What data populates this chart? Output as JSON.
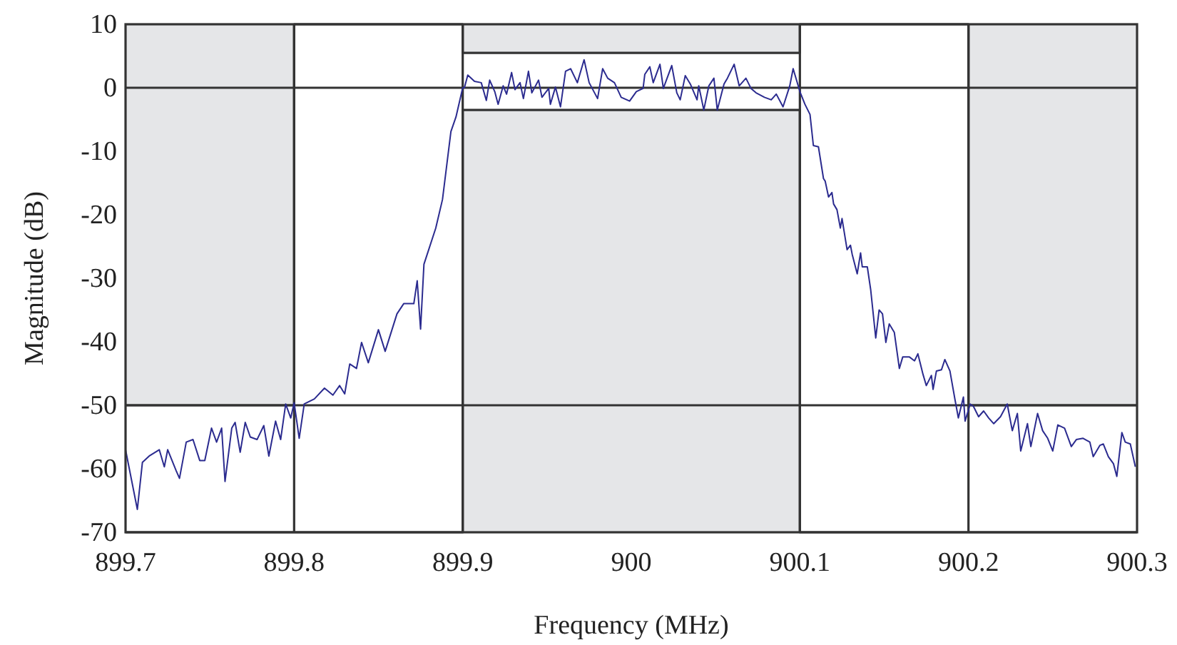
{
  "chart_data": {
    "type": "line",
    "xlabel": "Frequency (MHz)",
    "ylabel": "Magnitude (dB)",
    "xlim": [
      899.7,
      900.3
    ],
    "xticks": [
      899.7,
      899.8,
      899.9,
      900,
      900.1,
      900.2,
      900.3
    ],
    "ylim": [
      -70,
      10
    ],
    "yticks": [
      -70,
      -60,
      -50,
      -40,
      -30,
      -20,
      -10,
      0,
      10
    ],
    "marker": "none",
    "line_style": "solid",
    "ref_lines": [
      {
        "axis": "x",
        "value": 899.8
      },
      {
        "axis": "x",
        "value": 899.9
      },
      {
        "axis": "x",
        "value": 900.1
      },
      {
        "axis": "x",
        "value": 900.2
      },
      {
        "axis": "y",
        "value": 0
      },
      {
        "axis": "y",
        "value": -50
      }
    ],
    "series": [
      {
        "type": "step",
        "color": "#333333",
        "x": [
          899.7,
          899.8,
          899.9,
          900.1,
          900.2,
          900.3
        ],
        "values": [
          -50,
          10,
          5.5,
          10,
          -50,
          -50
        ]
      },
      {
        "type": "step",
        "color": "#333333",
        "x": [
          899.7,
          899.9,
          900.1,
          900.3
        ],
        "values": [
          -70,
          -3.5,
          -70,
          -70
        ]
      },
      {
        "color": "#2b2b8f",
        "x": [
          899.7,
          899.707,
          899.71,
          899.714,
          899.72,
          899.723,
          899.725,
          899.73,
          899.732,
          899.736,
          899.74,
          899.744,
          899.747,
          899.751,
          899.754,
          899.757,
          899.759,
          899.763,
          899.765,
          899.768,
          899.771,
          899.774,
          899.778,
          899.782,
          899.785,
          899.789,
          899.792,
          899.795,
          899.798,
          899.8,
          899.803,
          899.806,
          899.812,
          899.818,
          899.823,
          899.827,
          899.83,
          899.833,
          899.837,
          899.84,
          899.844,
          899.85,
          899.854,
          899.861,
          899.865,
          899.871,
          899.873,
          899.875,
          899.877,
          899.884,
          899.888,
          899.893,
          899.896,
          899.9,
          899.901,
          899.903,
          899.907,
          899.911,
          899.914,
          899.916,
          899.919,
          899.921,
          899.924,
          899.926,
          899.929,
          899.931,
          899.934,
          899.936,
          899.939,
          899.941,
          899.945,
          899.947,
          899.951,
          899.952,
          899.955,
          899.958,
          899.961,
          899.964,
          899.968,
          899.972,
          899.975,
          899.98,
          899.983,
          899.986,
          899.99,
          899.994,
          899.999,
          900.003,
          900.007,
          900.008,
          900.011,
          900.013,
          900.017,
          900.019,
          900.024,
          900.027,
          900.029,
          900.032,
          900.035,
          900.039,
          900.04,
          900.043,
          900.046,
          900.049,
          900.051,
          900.055,
          900.057,
          900.061,
          900.064,
          900.068,
          900.071,
          900.074,
          900.079,
          900.083,
          900.086,
          900.09,
          900.094,
          900.096,
          900.1,
          900.103,
          900.106,
          900.108,
          900.111,
          900.114,
          900.115,
          900.117,
          900.119,
          900.12,
          900.122,
          900.124,
          900.125,
          900.128,
          900.13,
          900.131,
          900.134,
          900.136,
          900.137,
          900.14,
          900.142,
          900.145,
          900.147,
          900.149,
          900.151,
          900.153,
          900.156,
          900.159,
          900.161,
          900.165,
          900.168,
          900.17,
          900.173,
          900.175,
          900.178,
          900.179,
          900.181,
          900.184,
          900.186,
          900.189,
          900.192,
          900.194,
          900.197,
          900.198,
          900.201,
          900.203,
          900.206,
          900.209,
          900.212,
          900.215,
          900.219,
          900.223,
          900.226,
          900.229,
          900.231,
          900.235,
          900.237,
          900.241,
          900.244,
          900.247,
          900.25,
          900.253,
          900.257,
          900.261,
          900.264,
          900.268,
          900.272,
          900.274,
          900.278,
          900.28,
          900.283,
          900.286,
          900.288,
          900.291,
          900.293,
          900.296,
          900.299
        ],
        "values": [
          -57,
          -66.4,
          -59,
          -58,
          -57,
          -59.7,
          -57,
          -60.3,
          -61.5,
          -55.8,
          -55.4,
          -58.7,
          -58.7,
          -53.6,
          -55.8,
          -53.6,
          -62,
          -53.6,
          -52.7,
          -57.4,
          -52.7,
          -55,
          -55.4,
          -53.2,
          -58,
          -52.5,
          -55.4,
          -49.8,
          -52,
          -49.6,
          -55.2,
          -49.8,
          -49,
          -47.3,
          -48.4,
          -46.9,
          -48.2,
          -43.5,
          -44.2,
          -40.1,
          -43.3,
          -38.1,
          -41.5,
          -35.6,
          -34,
          -34,
          -30.4,
          -38,
          -27.8,
          -22.1,
          -17.6,
          -6.9,
          -4.6,
          0,
          0,
          2,
          1,
          0.8,
          -2,
          1.2,
          -0.6,
          -2.6,
          0.3,
          -1,
          2.4,
          -0.3,
          0.8,
          -1.7,
          2.6,
          -0.8,
          1.2,
          -1.5,
          -0.1,
          -2.6,
          0.1,
          -3,
          2.6,
          3,
          0.8,
          4.4,
          0.8,
          -1.7,
          3,
          1.5,
          0.8,
          -1.5,
          -2.1,
          -0.6,
          -0.1,
          2.1,
          3.3,
          0.8,
          3.7,
          -0.1,
          3.5,
          -0.8,
          -1.9,
          1.9,
          0.6,
          -1.9,
          0.3,
          -3.5,
          0.3,
          1.5,
          -3.5,
          0.6,
          1.5,
          3.7,
          0.3,
          1.5,
          -0.1,
          -0.8,
          -1.5,
          -1.9,
          -1,
          -3,
          0.3,
          3,
          -0.6,
          -2.6,
          -4.2,
          -9.1,
          -9.3,
          -14.3,
          -14.7,
          -17.2,
          -16.5,
          -18.3,
          -19.2,
          -22.1,
          -20.6,
          -25.5,
          -24.8,
          -26.2,
          -29.3,
          -26,
          -28.2,
          -28.2,
          -31.8,
          -39.4,
          -35,
          -35.6,
          -40.1,
          -37.2,
          -38.5,
          -44.2,
          -42.4,
          -42.4,
          -43,
          -41.9,
          -45.1,
          -46.9,
          -45.3,
          -47.5,
          -44.6,
          -44.4,
          -42.8,
          -44.6,
          -49.1,
          -52,
          -48.7,
          -52.5,
          -49.8,
          -50.2,
          -51.8,
          -50.9,
          -52,
          -52.9,
          -51.8,
          -49.8,
          -54,
          -51.3,
          -57.2,
          -52.9,
          -56.5,
          -51.3,
          -54,
          -55.2,
          -57.2,
          -53.1,
          -53.6,
          -56.5,
          -55.4,
          -55.2,
          -55.8,
          -58.1,
          -56.3,
          -56.1,
          -58.1,
          -59.2,
          -61.2,
          -54.3,
          -55.8,
          -56.1,
          -59.7
        ]
      }
    ]
  }
}
